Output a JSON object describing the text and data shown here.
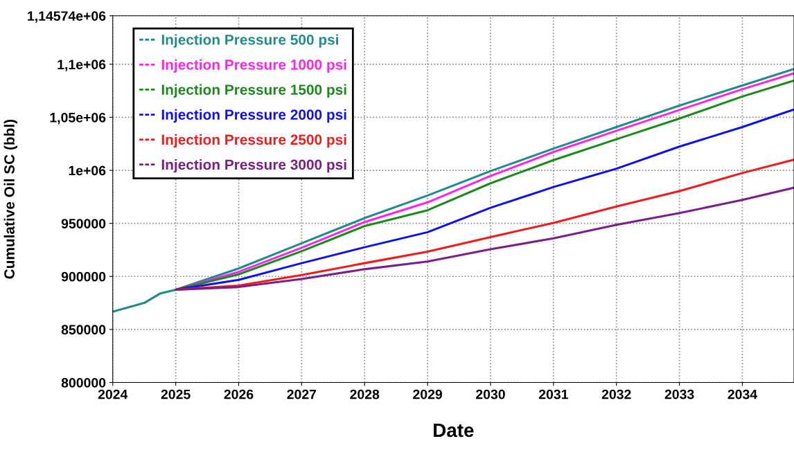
{
  "chart_data": {
    "type": "line",
    "xlabel": "Date",
    "ylabel": "Cumulative Oil SC (bbl)",
    "x": [
      2024,
      2024.5,
      2024.75,
      2025,
      2026,
      2027,
      2028,
      2029,
      2030,
      2031,
      2032,
      2033,
      2034,
      2034.82
    ],
    "series": [
      {
        "name": "Injection Pressure 500 psi",
        "color": "#1f8c8c",
        "values": [
          866800,
          875000,
          883800,
          887500,
          907500,
          931300,
          955000,
          976300,
          999300,
          1020500,
          1040800,
          1061100,
          1080000,
          1095600
        ]
      },
      {
        "name": "Injection Pressure 1000 psi",
        "color": "#ff22ee",
        "x": [
          2025,
          2026,
          2027,
          2028,
          2029,
          2030,
          2031,
          2032,
          2033,
          2034,
          2034.82
        ],
        "values": [
          887500,
          904300,
          927000,
          951300,
          969800,
          994700,
          1017300,
          1037300,
          1056900,
          1076500,
          1091500
        ]
      },
      {
        "name": "Injection Pressure 1500 psi",
        "color": "#1a8a1a",
        "x": [
          2025,
          2026,
          2027,
          2028,
          2029,
          2030,
          2031,
          2032,
          2033,
          2034,
          2034.82
        ],
        "values": [
          887500,
          902000,
          923800,
          947500,
          962400,
          987800,
          1009700,
          1029300,
          1048800,
          1069600,
          1084600
        ]
      },
      {
        "name": "Injection Pressure 2000 psi",
        "color": "#1010ee",
        "x": [
          2025,
          2026,
          2027,
          2028,
          2029,
          2030,
          2031,
          2032,
          2033,
          2034,
          2034.82
        ],
        "values": [
          887500,
          896800,
          912500,
          927500,
          941700,
          964700,
          984300,
          1001600,
          1022400,
          1040800,
          1057400
        ]
      },
      {
        "name": "Injection Pressure 2500 psi",
        "color": "#ee1c1c",
        "x": [
          2025,
          2026,
          2027,
          2028,
          2029,
          2030,
          2031,
          2032,
          2033,
          2034,
          2034.82
        ],
        "values": [
          887500,
          891300,
          901300,
          912500,
          923300,
          937100,
          950500,
          965900,
          980400,
          997500,
          1010100
        ]
      },
      {
        "name": "Injection Pressure 3000 psi",
        "color": "#7a1f8a",
        "x": [
          2025,
          2026,
          2027,
          2028,
          2029,
          2030,
          2031,
          2032,
          2033,
          2034,
          2034.82
        ],
        "values": [
          887500,
          890000,
          897500,
          906800,
          914000,
          925600,
          935900,
          948600,
          959700,
          972100,
          983600
        ]
      }
    ],
    "xlim": [
      2024,
      2034.82
    ],
    "xticks": [
      2024,
      2025,
      2026,
      2027,
      2028,
      2029,
      2030,
      2031,
      2032,
      2033,
      2034
    ],
    "ylim": [
      800000,
      1145740
    ],
    "yticks": [
      800000,
      850000,
      900000,
      950000,
      {
        "value": 1000000,
        "label": "1e+06"
      },
      {
        "value": 1050000,
        "label": "1,05e+06"
      },
      {
        "value": 1100000,
        "label": "1,1e+06"
      },
      {
        "value": 1145740,
        "label": "1,14574e+06"
      }
    ],
    "grid": true,
    "legend": "top left",
    "marker": "none",
    "line_style": "solid"
  }
}
